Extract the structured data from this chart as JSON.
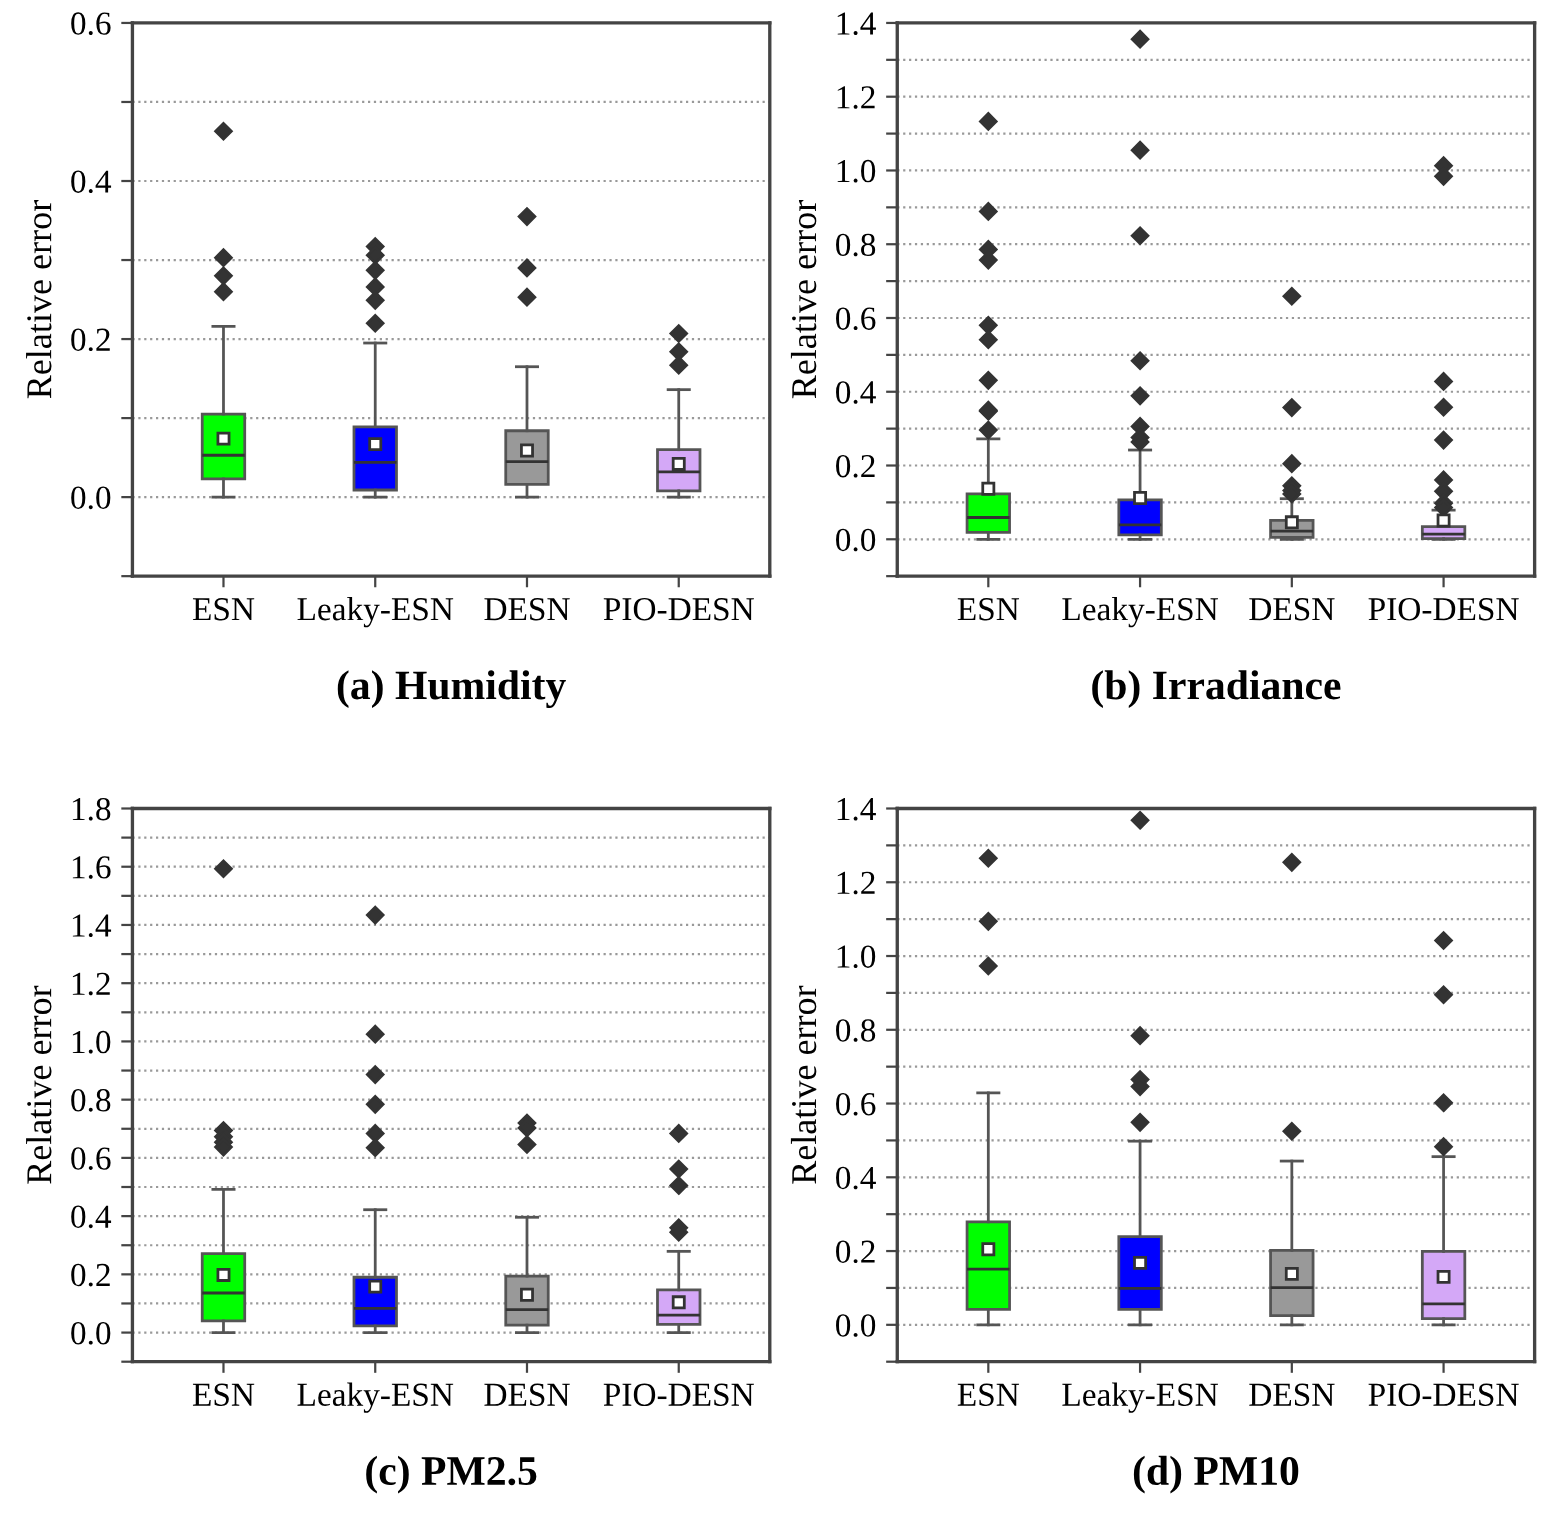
{
  "chart_data": [
    {
      "type": "box",
      "title": "(a) Humidity",
      "ylabel": "Relative error",
      "categories": [
        "ESN",
        "Leaky-ESN",
        "DESN",
        "PIO-DESN"
      ],
      "colors": [
        "#00ff00",
        "#0000ff",
        "#999999",
        "#d4a8f7"
      ],
      "ylim": [
        -0.1,
        0.6
      ],
      "yticks": [
        {
          "value": -0.1,
          "label": null
        },
        {
          "value": 0,
          "label": "0.0"
        },
        {
          "value": 0.1,
          "label": null
        },
        0.2,
        {
          "value": 0.3,
          "label": null
        },
        0.4,
        {
          "value": 0.5,
          "label": null
        },
        0.6
      ],
      "grid": "y",
      "marker": "diamond",
      "boxes": [
        {
          "low": 0,
          "q1": 0.023,
          "median": 0.053,
          "q3": 0.105,
          "high": 0.216,
          "mean": 0.074,
          "outliers": [
            0.463,
            0.303,
            0.28,
            0.26
          ]
        },
        {
          "low": 0,
          "q1": 0.009,
          "median": 0.044,
          "q3": 0.089,
          "high": 0.195,
          "mean": 0.067,
          "outliers": [
            0.317,
            0.306,
            0.287,
            0.266,
            0.249,
            0.22
          ]
        },
        {
          "low": 0,
          "q1": 0.016,
          "median": 0.045,
          "q3": 0.084,
          "high": 0.165,
          "mean": 0.059,
          "outliers": [
            0.355,
            0.29,
            0.253
          ]
        },
        {
          "low": 0,
          "q1": 0.008,
          "median": 0.032,
          "q3": 0.06,
          "high": 0.136,
          "mean": 0.042,
          "outliers": [
            0.207,
            0.184,
            0.167
          ]
        }
      ]
    },
    {
      "type": "box",
      "title": "(b) Irradiance",
      "ylabel": "Relative error",
      "categories": [
        "ESN",
        "Leaky-ESN",
        "DESN",
        "PIO-DESN"
      ],
      "colors": [
        "#00ff00",
        "#0000ff",
        "#999999",
        "#d4a8f7"
      ],
      "ylim": [
        -0.1,
        1.4
      ],
      "yticks": [
        {
          "value": -0.1,
          "label": null
        },
        {
          "value": 0,
          "label": "0.0"
        },
        {
          "value": 0.1,
          "label": null
        },
        0.2,
        {
          "value": 0.3,
          "label": null
        },
        0.4,
        {
          "value": 0.5,
          "label": null
        },
        0.6,
        {
          "value": 0.7,
          "label": null
        },
        0.8,
        {
          "value": 0.9,
          "label": null
        },
        {
          "value": 1,
          "label": "1.0"
        },
        {
          "value": 1.1,
          "label": null
        },
        1.2,
        {
          "value": 1.3,
          "label": null
        },
        1.4
      ],
      "grid": "y",
      "marker": "diamond",
      "boxes": [
        {
          "low": 0,
          "q1": 0.019,
          "median": 0.059,
          "q3": 0.123,
          "high": 0.272,
          "mean": 0.137,
          "outliers": [
            1.133,
            0.889,
            0.786,
            0.757,
            0.58,
            0.541,
            0.431,
            0.35,
            0.347,
            0.296
          ]
        },
        {
          "low": 0,
          "q1": 0.012,
          "median": 0.039,
          "q3": 0.107,
          "high": 0.242,
          "mean": 0.112,
          "outliers": [
            1.356,
            1.055,
            0.823,
            0.484,
            0.389,
            0.306,
            0.276,
            0.264
          ]
        },
        {
          "low": 0,
          "q1": 0.005,
          "median": 0.022,
          "q3": 0.051,
          "high": 0.11,
          "mean": 0.046,
          "outliers": [
            0.659,
            0.357,
            0.205,
            0.145,
            0.132,
            0.123
          ]
        },
        {
          "low": 0,
          "q1": 0.002,
          "median": 0.014,
          "q3": 0.034,
          "high": 0.079,
          "mean": 0.051,
          "outliers": [
            1.013,
            0.984,
            0.428,
            0.358,
            0.269,
            0.161,
            0.13,
            0.098,
            0.086
          ]
        }
      ]
    },
    {
      "type": "box",
      "title": "(c) PM2.5",
      "ylabel": "Relative error",
      "categories": [
        "ESN",
        "Leaky-ESN",
        "DESN",
        "PIO-DESN"
      ],
      "colors": [
        "#00ff00",
        "#0000ff",
        "#999999",
        "#d4a8f7"
      ],
      "ylim": [
        -0.1,
        1.8
      ],
      "yticks": [
        {
          "value": -0.1,
          "label": null
        },
        {
          "value": 0,
          "label": "0.0"
        },
        {
          "value": 0.1,
          "label": null
        },
        0.2,
        {
          "value": 0.3,
          "label": null
        },
        0.4,
        {
          "value": 0.5,
          "label": null
        },
        0.6,
        {
          "value": 0.7,
          "label": null
        },
        0.8,
        {
          "value": 0.9,
          "label": null
        },
        {
          "value": 1,
          "label": "1.0"
        },
        {
          "value": 1.1,
          "label": null
        },
        1.2,
        {
          "value": 1.3,
          "label": null
        },
        1.4,
        {
          "value": 1.5,
          "label": null
        },
        1.6,
        {
          "value": 1.7,
          "label": null
        },
        1.8
      ],
      "grid": "y",
      "marker": "diamond",
      "boxes": [
        {
          "low": 0,
          "q1": 0.04,
          "median": 0.136,
          "q3": 0.271,
          "high": 0.492,
          "mean": 0.198,
          "outliers": [
            1.593,
            0.694,
            0.673,
            0.654,
            0.637
          ]
        },
        {
          "low": 0,
          "q1": 0.023,
          "median": 0.083,
          "q3": 0.19,
          "high": 0.422,
          "mean": 0.158,
          "outliers": [
            1.434,
            1.025,
            0.886,
            0.784,
            0.684,
            0.635
          ]
        },
        {
          "low": 0,
          "q1": 0.026,
          "median": 0.079,
          "q3": 0.194,
          "high": 0.396,
          "mean": 0.13,
          "outliers": [
            0.72,
            0.703,
            0.646
          ]
        },
        {
          "low": 0,
          "q1": 0.028,
          "median": 0.06,
          "q3": 0.147,
          "high": 0.279,
          "mean": 0.104,
          "outliers": [
            0.684,
            0.562,
            0.505,
            0.36,
            0.345
          ]
        }
      ]
    },
    {
      "type": "box",
      "title": "(d) PM10",
      "ylabel": "Relative error",
      "categories": [
        "ESN",
        "Leaky-ESN",
        "DESN",
        "PIO-DESN"
      ],
      "colors": [
        "#00ff00",
        "#0000ff",
        "#999999",
        "#d4a8f7"
      ],
      "ylim": [
        -0.1,
        1.4
      ],
      "yticks": [
        {
          "value": -0.1,
          "label": null
        },
        {
          "value": 0,
          "label": "0.0"
        },
        {
          "value": 0.1,
          "label": null
        },
        0.2,
        {
          "value": 0.3,
          "label": null
        },
        0.4,
        {
          "value": 0.5,
          "label": null
        },
        0.6,
        {
          "value": 0.7,
          "label": null
        },
        0.8,
        {
          "value": 0.9,
          "label": null
        },
        {
          "value": 1,
          "label": "1.0"
        },
        {
          "value": 1.1,
          "label": null
        },
        1.2,
        {
          "value": 1.3,
          "label": null
        },
        1.4
      ],
      "grid": "y",
      "marker": "diamond",
      "boxes": [
        {
          "low": 0,
          "q1": 0.042,
          "median": 0.151,
          "q3": 0.279,
          "high": 0.629,
          "mean": 0.205,
          "outliers": [
            1.265,
            1.094,
            0.973
          ]
        },
        {
          "low": 0,
          "q1": 0.042,
          "median": 0.099,
          "q3": 0.239,
          "high": 0.498,
          "mean": 0.168,
          "outliers": [
            1.368,
            0.784,
            0.665,
            0.646,
            0.549
          ]
        },
        {
          "low": 0,
          "q1": 0.025,
          "median": 0.101,
          "q3": 0.202,
          "high": 0.444,
          "mean": 0.138,
          "outliers": [
            1.254,
            0.525
          ]
        },
        {
          "low": 0,
          "q1": 0.017,
          "median": 0.057,
          "q3": 0.199,
          "high": 0.456,
          "mean": 0.13,
          "outliers": [
            1.042,
            0.895,
            0.602,
            0.483
          ]
        }
      ]
    }
  ]
}
